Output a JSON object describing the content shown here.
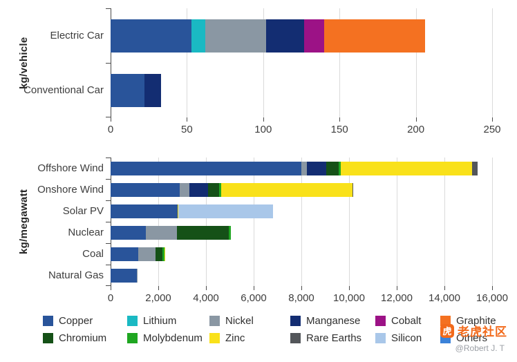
{
  "watermark": {
    "brand": "老虎社区",
    "logo_glyph": "虎",
    "credit": "@Robert J. T",
    "brand_color": "#f26a1b"
  },
  "legend": {
    "rows": [
      [
        "Copper",
        "Lithium",
        "Nickel",
        "Manganese",
        "Cobalt",
        "Graphite"
      ],
      [
        "Chromium",
        "Molybdenum",
        "Zinc",
        "Rare Earths",
        "Silicon",
        "Others"
      ]
    ],
    "colors": {
      "Copper": "#29549a",
      "Lithium": "#1ab9c3",
      "Nickel": "#8a97a3",
      "Manganese": "#132d72",
      "Cobalt": "#9c1286",
      "Graphite": "#f47121",
      "Chromium": "#155117",
      "Molybdenum": "#1fa621",
      "Zinc": "#f9e11a",
      "Rare Earths": "#53565a",
      "Silicon": "#a9c7e9",
      "Others": "#3b82d9"
    }
  },
  "chart_data": [
    {
      "type": "bar",
      "stacked": true,
      "orientation": "horizontal",
      "ylabel": "kg/vehicle",
      "categories": [
        "Electric Car",
        "Conventional Car"
      ],
      "xlim": [
        0,
        250
      ],
      "grid": true,
      "legend_position": "bottom",
      "xticks": [
        {
          "value": 0,
          "label": "0"
        },
        {
          "value": 50,
          "label": "50"
        },
        {
          "value": 100,
          "label": "100"
        },
        {
          "value": 150,
          "label": "150"
        },
        {
          "value": 200,
          "label": "200"
        },
        {
          "value": 250,
          "label": "250"
        }
      ],
      "series": [
        {
          "name": "Copper",
          "values": [
            53,
            22
          ]
        },
        {
          "name": "Lithium",
          "values": [
            9,
            0
          ]
        },
        {
          "name": "Nickel",
          "values": [
            40,
            0
          ]
        },
        {
          "name": "Manganese",
          "values": [
            25,
            11
          ]
        },
        {
          "name": "Cobalt",
          "values": [
            13,
            0
          ]
        },
        {
          "name": "Graphite",
          "values": [
            66,
            0
          ]
        }
      ]
    },
    {
      "type": "bar",
      "stacked": true,
      "orientation": "horizontal",
      "ylabel": "kg/megawatt",
      "categories": [
        "Offshore Wind",
        "Onshore Wind",
        "Solar PV",
        "Nuclear",
        "Coal",
        "Natural Gas"
      ],
      "xlim": [
        0,
        16000
      ],
      "grid": true,
      "legend_position": "bottom",
      "xticks": [
        {
          "value": 0,
          "label": "0"
        },
        {
          "value": 2000,
          "label": "2,000"
        },
        {
          "value": 4000,
          "label": "4,000"
        },
        {
          "value": 6000,
          "label": "6,000"
        },
        {
          "value": 8000,
          "label": "8,000"
        },
        {
          "value": 10000,
          "label": "10,000"
        },
        {
          "value": 12000,
          "label": "12,000"
        },
        {
          "value": 14000,
          "label": "14,000"
        },
        {
          "value": 16000,
          "label": "16,000"
        }
      ],
      "series": [
        {
          "name": "Copper",
          "values": [
            8000,
            2900,
            2820,
            1470,
            1150,
            1100
          ]
        },
        {
          "name": "Nickel",
          "values": [
            240,
            400,
            0,
            1300,
            720,
            20
          ]
        },
        {
          "name": "Manganese",
          "values": [
            790,
            780,
            0,
            0,
            5,
            0
          ]
        },
        {
          "name": "Chromium",
          "values": [
            525,
            470,
            0,
            2190,
            310,
            0
          ]
        },
        {
          "name": "Molybdenum",
          "values": [
            110,
            100,
            0,
            70,
            70,
            0
          ]
        },
        {
          "name": "Zinc",
          "values": [
            5500,
            5500,
            30,
            0,
            30,
            0
          ]
        },
        {
          "name": "Rare Earths",
          "values": [
            240,
            14,
            0,
            0,
            0,
            0
          ]
        },
        {
          "name": "Silicon",
          "values": [
            0,
            0,
            3950,
            0,
            0,
            0
          ]
        }
      ]
    }
  ]
}
